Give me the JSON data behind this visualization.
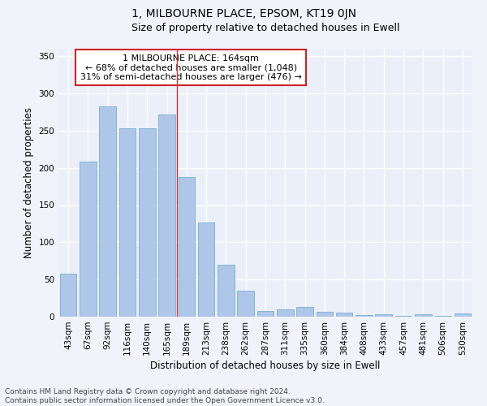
{
  "title": "1, MILBOURNE PLACE, EPSOM, KT19 0JN",
  "subtitle": "Size of property relative to detached houses in Ewell",
  "xlabel": "Distribution of detached houses by size in Ewell",
  "ylabel": "Number of detached properties",
  "categories": [
    "43sqm",
    "67sqm",
    "92sqm",
    "116sqm",
    "140sqm",
    "165sqm",
    "189sqm",
    "213sqm",
    "238sqm",
    "262sqm",
    "287sqm",
    "311sqm",
    "335sqm",
    "360sqm",
    "384sqm",
    "408sqm",
    "433sqm",
    "457sqm",
    "481sqm",
    "506sqm",
    "530sqm"
  ],
  "values": [
    58,
    208,
    283,
    253,
    253,
    272,
    188,
    127,
    70,
    35,
    8,
    10,
    13,
    7,
    5,
    2,
    3,
    1,
    3,
    1,
    4
  ],
  "bar_color": "#aec6e8",
  "bar_edge_color": "#7aadd4",
  "highlight_index": 5,
  "annotation_line1": "1 MILBOURNE PLACE: 164sqm",
  "annotation_line2": "← 68% of detached houses are smaller (1,048)",
  "annotation_line3": "31% of semi-detached houses are larger (476) →",
  "ylim": [
    0,
    360
  ],
  "yticks": [
    0,
    50,
    100,
    150,
    200,
    250,
    300,
    350
  ],
  "footer_line1": "Contains HM Land Registry data © Crown copyright and database right 2024.",
  "footer_line2": "Contains public sector information licensed under the Open Government Licence v3.0.",
  "fig_facecolor": "#f0f4fa",
  "ax_facecolor": "#eaeff8",
  "grid_color": "#ffffff",
  "title_fontsize": 10,
  "subtitle_fontsize": 9,
  "axis_label_fontsize": 8.5,
  "tick_fontsize": 7.5,
  "annotation_fontsize": 8,
  "footer_fontsize": 6.5
}
